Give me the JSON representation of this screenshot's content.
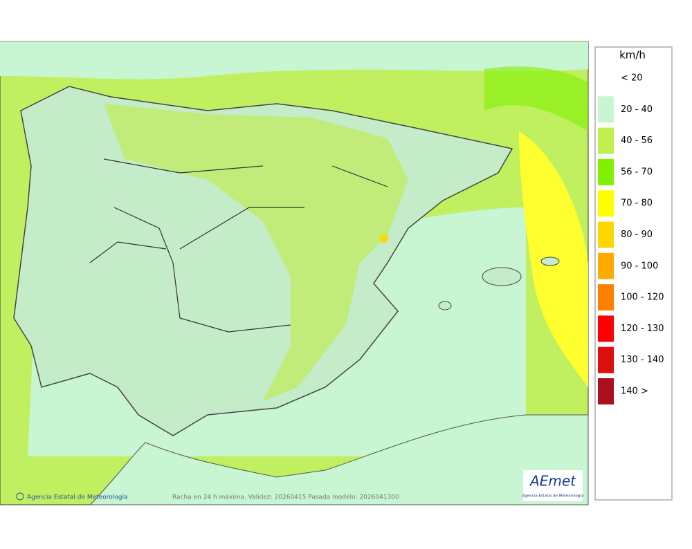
{
  "footer": {
    "credit": "Agencia Estatal de Meteorología",
    "caption": "Racha en 24 h máxima. Validez: 20260415 Pasada modelo: 2026041300"
  },
  "logo": {
    "name": "AEmet",
    "subtitle": "Agencia Estatal de Meteorología"
  },
  "legend": {
    "title": "km/h",
    "items": [
      {
        "label": "< 20",
        "color": null
      },
      {
        "label": "20 - 40",
        "color": "#c8f5d2"
      },
      {
        "label": "40 - 56",
        "color": "#c0f050"
      },
      {
        "label": "56 - 70",
        "color": "#80f000"
      },
      {
        "label": "70 - 80",
        "color": "#ffff00"
      },
      {
        "label": "80 - 90",
        "color": "#ffd700"
      },
      {
        "label": "90 - 100",
        "color": "#ffaa00"
      },
      {
        "label": "100 - 120",
        "color": "#ff8000"
      },
      {
        "label": "120 - 130",
        "color": "#ff0000"
      },
      {
        "label": "130 - 140",
        "color": "#dd1010"
      },
      {
        "label": "140 >",
        "color": "#aa1020"
      }
    ]
  }
}
